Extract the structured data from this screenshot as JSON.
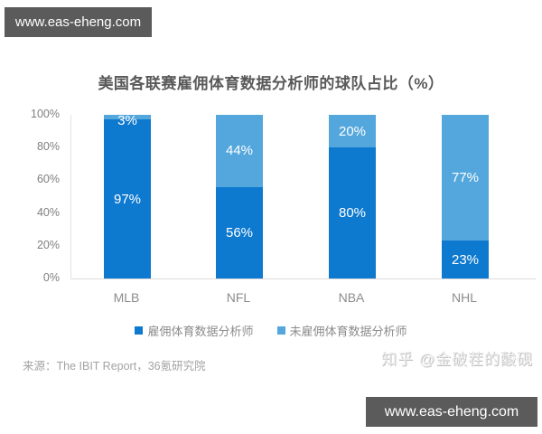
{
  "watermarks": {
    "top_left": "www.eas-eheng.com",
    "bottom_right": "www.eas-eheng.com",
    "zhihu": "知乎 @金破茬的酸砚"
  },
  "chart_data": {
    "type": "bar",
    "stacked": true,
    "title": "美国各联赛雇佣体育数据分析师的球队占比（%）",
    "categories": [
      "MLB",
      "NFL",
      "NBA",
      "NHL"
    ],
    "series": [
      {
        "name": "雇佣体育数据分析师",
        "color": "#0d79cf",
        "values": [
          97,
          56,
          80,
          23
        ]
      },
      {
        "name": "未雇佣体育数据分析师",
        "color": "#54a7dc",
        "values": [
          3,
          44,
          20,
          77
        ]
      }
    ],
    "y_ticks": [
      "100%",
      "80%",
      "60%",
      "40%",
      "20%",
      "0%"
    ],
    "ylim": [
      0,
      100
    ],
    "grid": false,
    "legend_position": "bottom",
    "data_labels": true,
    "data_label_color": "#ffffff"
  },
  "source": "来源：The IBIT Report，36氪研究院"
}
